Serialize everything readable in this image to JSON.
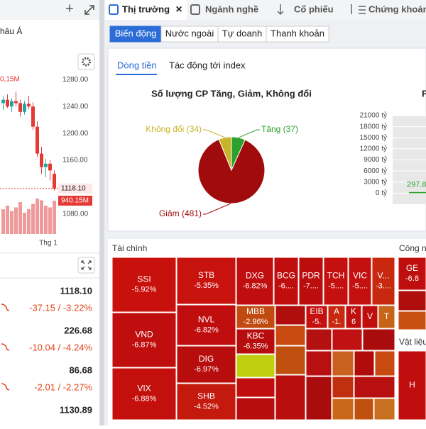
{
  "left": {
    "region": "hâu Á",
    "volume_note": "0,15M",
    "expand": "+",
    "rows": [
      {
        "price": "1118.10",
        "change": "-37.15 / -3.22%"
      },
      {
        "price": "226.68",
        "change": "-10.04 / -4.24%"
      },
      {
        "price": "86.68",
        "change": "-2.01 / -2.27%"
      },
      {
        "price": "1130.89"
      }
    ]
  },
  "tabs": [
    "Thị trường",
    "Ngành nghề",
    "Cổ phiếu",
    "Chứng khoán"
  ],
  "tab_close": "×",
  "subtabs": [
    "Biến động",
    "Nước ngoài",
    "Tự doanh",
    "Thanh khoản"
  ],
  "card_tabs": [
    "Dòng tiền",
    "Tác động tới index"
  ],
  "chart_data": [
    {
      "type": "candlestick",
      "x_label": "Thg 1",
      "up_color": "#26a69a",
      "down_color": "#e53935",
      "open": [
        1245,
        1250,
        1240,
        1248,
        1245,
        1232,
        1244,
        1240,
        1210,
        1170,
        1150,
        1155,
        1140
      ],
      "high": [
        1255,
        1258,
        1252,
        1262,
        1250,
        1248,
        1256,
        1246,
        1218,
        1180,
        1162,
        1160,
        1145
      ],
      "low": [
        1235,
        1238,
        1232,
        1240,
        1225,
        1228,
        1236,
        1205,
        1165,
        1140,
        1135,
        1130,
        1115
      ],
      "close": [
        1250,
        1240,
        1248,
        1245,
        1232,
        1244,
        1240,
        1210,
        1170,
        1150,
        1155,
        1145,
        1118.1
      ],
      "ylim": [
        1040,
        1335
      ],
      "yticks": [
        {
          "value": 1280,
          "label": "1280.00"
        },
        {
          "value": 1240,
          "label": "1240.00"
        },
        {
          "value": 1200,
          "label": "1200.00"
        },
        {
          "value": 1160,
          "label": "1160.00"
        },
        {
          "value": 1080,
          "label": "1080.00"
        }
      ],
      "last": {
        "value": 1118.1,
        "label": "1118.10"
      },
      "volume": {
        "values": [
          700,
          800,
          650,
          750,
          900,
          600,
          700,
          850,
          1000,
          950,
          800,
          750,
          940.15
        ],
        "ylim": [
          0,
          1200
        ],
        "last_label": "940.15M",
        "color": "#ef9a9a"
      }
    },
    {
      "type": "pie",
      "title": "Số lượng CP Tăng, Giảm, Không đổi",
      "values": [
        37,
        481,
        34
      ],
      "labels": [
        "Tăng (37)",
        "Giảm (481)",
        "Không đổi (34)"
      ],
      "colors": [
        "#2ca02c",
        "#a00c0c",
        "#c8b42a"
      ]
    },
    {
      "type": "bar",
      "title": "F",
      "values": [
        297.8
      ],
      "value_labels": [
        "297.8"
      ],
      "color": "#2ca02c",
      "ylim": [
        -3000,
        21000
      ],
      "yticks": [
        {
          "value": 21000,
          "label": "21000 tỷ"
        },
        {
          "value": 18000,
          "label": "18000 tỷ"
        },
        {
          "value": 15000,
          "label": "15000 tỷ"
        },
        {
          "value": 12000,
          "label": "12000 tỷ"
        },
        {
          "value": 9000,
          "label": "9000 tỷ"
        },
        {
          "value": 6000,
          "label": "6000 tỷ"
        },
        {
          "value": 3000,
          "label": "3000 tỷ"
        },
        {
          "value": 0,
          "label": "0 tỷ"
        }
      ]
    }
  ],
  "treemap": {
    "groups": [
      "Tài chính",
      "Công n",
      "Vật liệu"
    ],
    "cells": [
      {
        "name": "SSI",
        "change": "-5.92%"
      },
      {
        "name": "VND",
        "change": "-6.87%"
      },
      {
        "name": "VIX",
        "change": "-6.88%"
      },
      {
        "name": "STB",
        "change": "-5.35%"
      },
      {
        "name": "NVL",
        "change": "-6.82%"
      },
      {
        "name": "DIG",
        "change": "-6.97%"
      },
      {
        "name": "SHB",
        "change": "-4.52%"
      },
      {
        "name": "DXG",
        "change": "-6.82%"
      },
      {
        "name": "BCG",
        "change": "-6...."
      },
      {
        "name": "PDR",
        "change": "-7...."
      },
      {
        "name": "TCH",
        "change": "-5...."
      },
      {
        "name": "VIC",
        "change": "-5...."
      },
      {
        "name": "V...",
        "change": "-3...."
      },
      {
        "name": "MBB",
        "change": "-2.96%"
      },
      {
        "name": "KBC",
        "change": "-6.35%"
      },
      {
        "name": "EIB",
        "change": "-5."
      },
      {
        "name": "A",
        "change": "-1."
      },
      {
        "name": "K",
        "change": "6"
      },
      {
        "name": "V"
      },
      {
        "name": "T"
      },
      {
        "name": "GE",
        "change": "-6.8"
      },
      {
        "name": "H"
      }
    ]
  }
}
